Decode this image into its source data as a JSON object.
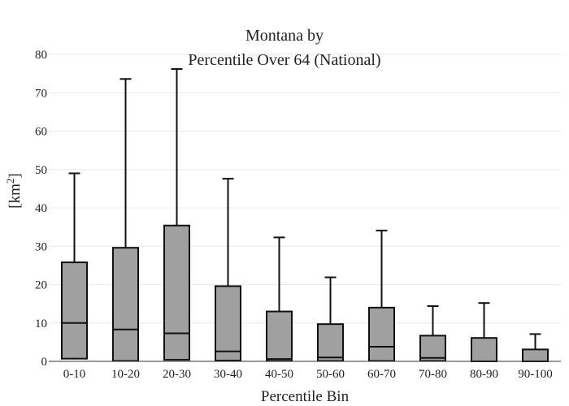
{
  "chart_data": {
    "type": "box",
    "title_line1": "Montana  by",
    "title_line2": "Percentile Over 64 (National)",
    "xlabel": "Percentile Bin",
    "ylabel_base": "[km",
    "ylabel_sup": "2",
    "ylabel_end": "]",
    "ylim": [
      0,
      80
    ],
    "yticks": [
      0,
      10,
      20,
      30,
      40,
      50,
      60,
      70,
      80
    ],
    "grid": true,
    "categories": [
      "0-10",
      "10-20",
      "20-30",
      "30-40",
      "40-50",
      "50-60",
      "60-70",
      "70-80",
      "80-90",
      "90-100"
    ],
    "boxes": [
      {
        "min": 0.5,
        "q1": 0.7,
        "median": 10.0,
        "q3": 25.8,
        "max": 49.0
      },
      {
        "min": 0.0,
        "q1": 0.1,
        "median": 8.3,
        "q3": 29.6,
        "max": 73.6
      },
      {
        "min": 0.2,
        "q1": 0.4,
        "median": 7.3,
        "q3": 35.4,
        "max": 76.2
      },
      {
        "min": 0.0,
        "q1": 0.2,
        "median": 2.6,
        "q3": 19.6,
        "max": 47.6
      },
      {
        "min": 0.0,
        "q1": 0.1,
        "median": 0.6,
        "q3": 13.0,
        "max": 32.3
      },
      {
        "min": 0.0,
        "q1": 0.1,
        "median": 1.0,
        "q3": 9.7,
        "max": 21.9
      },
      {
        "min": 0.0,
        "q1": 0.1,
        "median": 3.8,
        "q3": 14.0,
        "max": 34.1
      },
      {
        "min": 0.0,
        "q1": 0.1,
        "median": 0.9,
        "q3": 6.7,
        "max": 14.4
      },
      {
        "min": 0.0,
        "q1": 0.0,
        "median": 0.0,
        "q3": 6.1,
        "max": 15.2
      },
      {
        "min": 0.0,
        "q1": 0.0,
        "median": 0.0,
        "q3": 3.1,
        "max": 7.1
      }
    ],
    "box_fill": "#a0a0a0",
    "line_color": "#111111"
  }
}
